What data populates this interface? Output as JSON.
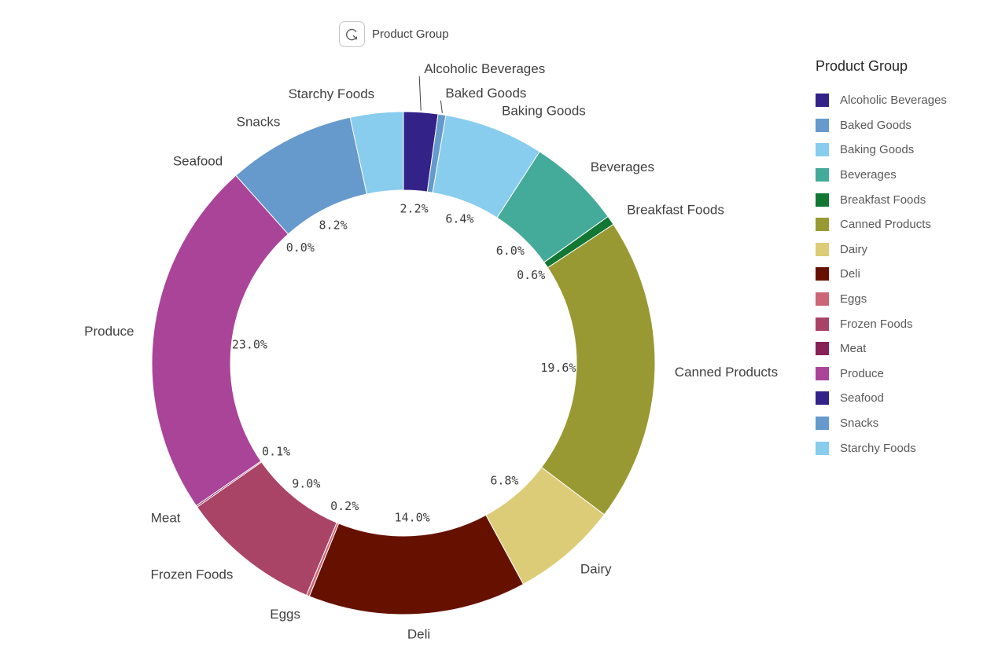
{
  "header": {
    "title": "Product Group",
    "icon": "cyclic-dimension-icon"
  },
  "legend": {
    "title": "Product Group",
    "items": [
      {
        "label": "Alcoholic Beverages",
        "color": "#332288"
      },
      {
        "label": "Baked Goods",
        "color": "#6699CC"
      },
      {
        "label": "Baking Goods",
        "color": "#88CCEE"
      },
      {
        "label": "Beverages",
        "color": "#44AA99"
      },
      {
        "label": "Breakfast Foods",
        "color": "#117733"
      },
      {
        "label": "Canned Products",
        "color": "#999933"
      },
      {
        "label": "Dairy",
        "color": "#DDCC77"
      },
      {
        "label": "Deli",
        "color": "#661100"
      },
      {
        "label": "Eggs",
        "color": "#CC6677"
      },
      {
        "label": "Frozen Foods",
        "color": "#AA4466"
      },
      {
        "label": "Meat",
        "color": "#882255"
      },
      {
        "label": "Produce",
        "color": "#AA4499"
      },
      {
        "label": "Seafood",
        "color": "#332288"
      },
      {
        "label": "Snacks",
        "color": "#6699CC"
      },
      {
        "label": "Starchy Foods",
        "color": "#88CCEE"
      }
    ]
  },
  "chart_data": {
    "type": "pie",
    "variant": "donut",
    "title": "Product Group",
    "unit": "%",
    "legend_position": "right",
    "slices": [
      {
        "label": "Alcoholic Beverages",
        "value": 2.2,
        "pct_label": "2.2%",
        "color": "#332288",
        "leader": true
      },
      {
        "label": "Baked Goods",
        "value": 0.5,
        "pct_label": "",
        "color": "#6699CC",
        "leader": true
      },
      {
        "label": "Baking Goods",
        "value": 6.4,
        "pct_label": "6.4%",
        "color": "#88CCEE"
      },
      {
        "label": "Beverages",
        "value": 6.0,
        "pct_label": "6.0%",
        "color": "#44AA99"
      },
      {
        "label": "Breakfast Foods",
        "value": 0.6,
        "pct_label": "0.6%",
        "color": "#117733"
      },
      {
        "label": "Canned Products",
        "value": 19.6,
        "pct_label": "19.6%",
        "color": "#999933"
      },
      {
        "label": "Dairy",
        "value": 6.8,
        "pct_label": "6.8%",
        "color": "#DDCC77"
      },
      {
        "label": "Deli",
        "value": 14.0,
        "pct_label": "14.0%",
        "color": "#661100"
      },
      {
        "label": "Eggs",
        "value": 0.2,
        "pct_label": "0.2%",
        "color": "#CC6677"
      },
      {
        "label": "Frozen Foods",
        "value": 9.0,
        "pct_label": "9.0%",
        "color": "#AA4466"
      },
      {
        "label": "Meat",
        "value": 0.1,
        "pct_label": "0.1%",
        "color": "#882255"
      },
      {
        "label": "Produce",
        "value": 23.0,
        "pct_label": "23.0%",
        "color": "#AA4499"
      },
      {
        "label": "Seafood",
        "value": 0.0,
        "pct_label": "0.0%",
        "color": "#332288"
      },
      {
        "label": "Snacks",
        "value": 8.2,
        "pct_label": "8.2%",
        "color": "#6699CC"
      },
      {
        "label": "Starchy Foods",
        "value": 3.4,
        "pct_label": "",
        "color": "#88CCEE"
      }
    ]
  }
}
